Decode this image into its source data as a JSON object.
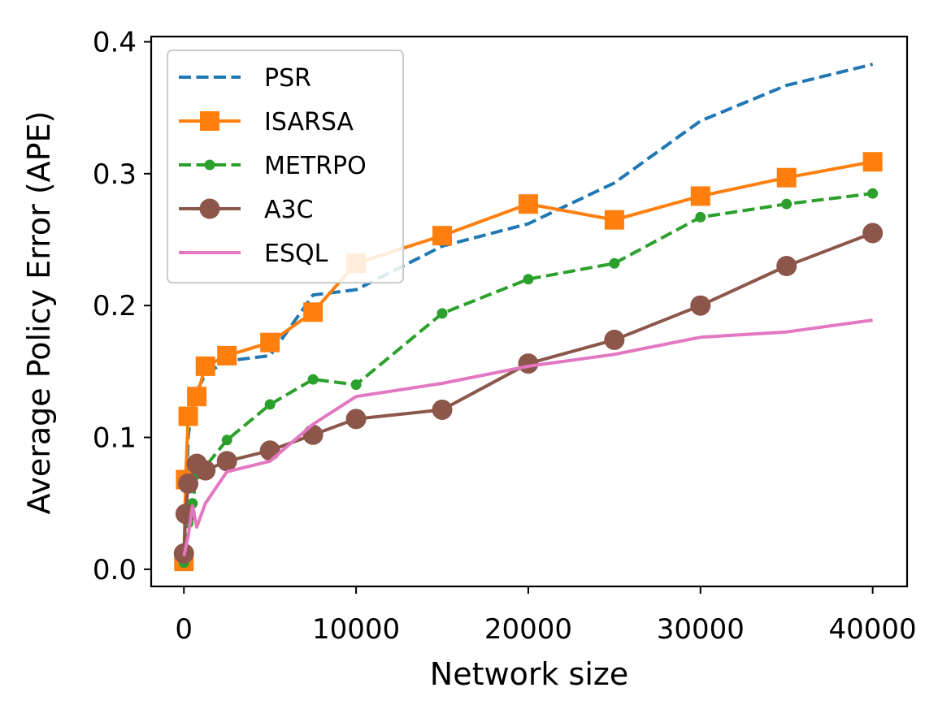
{
  "chart_data": {
    "type": "line",
    "title": "",
    "xlabel": "Network size",
    "ylabel": "Average Policy Error (APE)",
    "xlim": [
      -1900,
      42000
    ],
    "ylim": [
      -0.013,
      0.404
    ],
    "xticks": [
      0,
      10000,
      20000,
      30000,
      40000
    ],
    "yticks": [
      0.0,
      0.1,
      0.2,
      0.3,
      0.4
    ],
    "xtick_labels": [
      "0",
      "10000",
      "20000",
      "30000",
      "40000"
    ],
    "ytick_labels": [
      "0.0",
      "0.1",
      "0.2",
      "0.3",
      "0.4"
    ],
    "grid": false,
    "legend_position": "top-left",
    "series": [
      {
        "name": "PSR",
        "color": "#1f77b4",
        "style": "dashed",
        "marker": "none",
        "x": [
          0,
          250,
          500,
          750,
          1250,
          2500,
          5000,
          7500,
          10000,
          15000,
          20000,
          25000,
          30000,
          35000,
          40000
        ],
        "y": [
          0.006,
          0.1,
          0.13,
          0.135,
          0.148,
          0.158,
          0.162,
          0.208,
          0.212,
          0.245,
          0.262,
          0.293,
          0.34,
          0.367,
          0.383
        ]
      },
      {
        "name": "ISARSA",
        "color": "#ff7f0e",
        "style": "solid",
        "marker": "square",
        "x": [
          0,
          100,
          250,
          750,
          1250,
          2500,
          5000,
          7500,
          10000,
          15000,
          20000,
          25000,
          30000,
          35000,
          40000
        ],
        "y": [
          0.006,
          0.068,
          0.116,
          0.131,
          0.154,
          0.162,
          0.172,
          0.195,
          0.232,
          0.253,
          0.277,
          0.265,
          0.283,
          0.297,
          0.309
        ]
      },
      {
        "name": "METRPO",
        "color": "#2ca02c",
        "style": "dashed",
        "marker": "dot",
        "x": [
          0,
          250,
          500,
          750,
          1250,
          2500,
          5000,
          7500,
          10000,
          15000,
          20000,
          25000,
          30000,
          35000,
          40000
        ],
        "y": [
          0.005,
          0.035,
          0.05,
          0.072,
          0.078,
          0.098,
          0.125,
          0.144,
          0.14,
          0.194,
          0.22,
          0.232,
          0.267,
          0.277,
          0.285
        ]
      },
      {
        "name": "A3C",
        "color": "#8c564b",
        "style": "solid",
        "marker": "circle",
        "x": [
          0,
          100,
          250,
          750,
          1250,
          2500,
          5000,
          7500,
          10000,
          15000,
          20000,
          25000,
          30000,
          35000,
          40000
        ],
        "y": [
          0.012,
          0.042,
          0.065,
          0.08,
          0.075,
          0.082,
          0.09,
          0.102,
          0.114,
          0.121,
          0.156,
          0.174,
          0.2,
          0.23,
          0.255
        ]
      },
      {
        "name": "ESQL",
        "color": "#e377c2",
        "style": "solid",
        "marker": "none",
        "x": [
          0,
          250,
          500,
          750,
          1250,
          2500,
          5000,
          7500,
          10000,
          15000,
          20000,
          25000,
          30000,
          35000,
          40000
        ],
        "y": [
          0.01,
          0.025,
          0.048,
          0.032,
          0.05,
          0.074,
          0.082,
          0.11,
          0.131,
          0.141,
          0.154,
          0.163,
          0.176,
          0.18,
          0.189
        ]
      }
    ]
  }
}
